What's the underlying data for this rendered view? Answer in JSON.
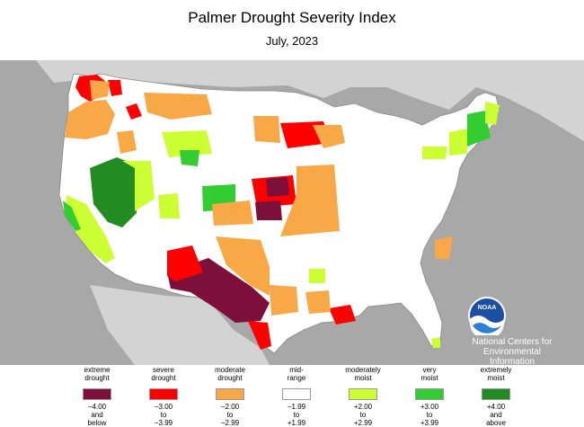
{
  "header": {
    "title": "Palmer Drought Severity Index",
    "subtitle": "July, 2023"
  },
  "colors": {
    "extreme_drought": "#7d0f3b",
    "severe_drought": "#ff0000",
    "moderate_drought": "#f9a848",
    "mid_range": "#ffffff",
    "moderately_moist": "#ccff33",
    "very_moist": "#33cc33",
    "extremely_moist": "#228b22",
    "ocean_gray": "#a8a8a8",
    "land_gray": "#d3d3d3"
  },
  "logo": {
    "text": "NOAA",
    "caption_lines": [
      "National Centers for",
      "Environmental",
      "Information"
    ]
  },
  "legend": {
    "items": [
      {
        "label_lines": [
          "extreme",
          "drought"
        ],
        "range_lines": [
          "−4.00",
          "and",
          "below"
        ],
        "color": "#7d0f3b"
      },
      {
        "label_lines": [
          "severe",
          "drought"
        ],
        "range_lines": [
          "−3.00",
          "to",
          "−3.99"
        ],
        "color": "#ff0000"
      },
      {
        "label_lines": [
          "moderate",
          "drought"
        ],
        "range_lines": [
          "−2.00",
          "to",
          "−2.99"
        ],
        "color": "#f9a848"
      },
      {
        "label_lines": [
          "mid-",
          "range"
        ],
        "range_lines": [
          "−1.99",
          "to",
          "+1.99"
        ],
        "color": "#ffffff"
      },
      {
        "label_lines": [
          "moderately",
          "moist"
        ],
        "range_lines": [
          "+2.00",
          "to",
          "+2.99"
        ],
        "color": "#ccff33"
      },
      {
        "label_lines": [
          "very",
          "moist"
        ],
        "range_lines": [
          "+3.00",
          "to",
          "+3.99"
        ],
        "color": "#33cc33"
      },
      {
        "label_lines": [
          "extremely",
          "moist"
        ],
        "range_lines": [
          "+4.00",
          "and",
          "above"
        ],
        "color": "#228b22"
      }
    ]
  }
}
